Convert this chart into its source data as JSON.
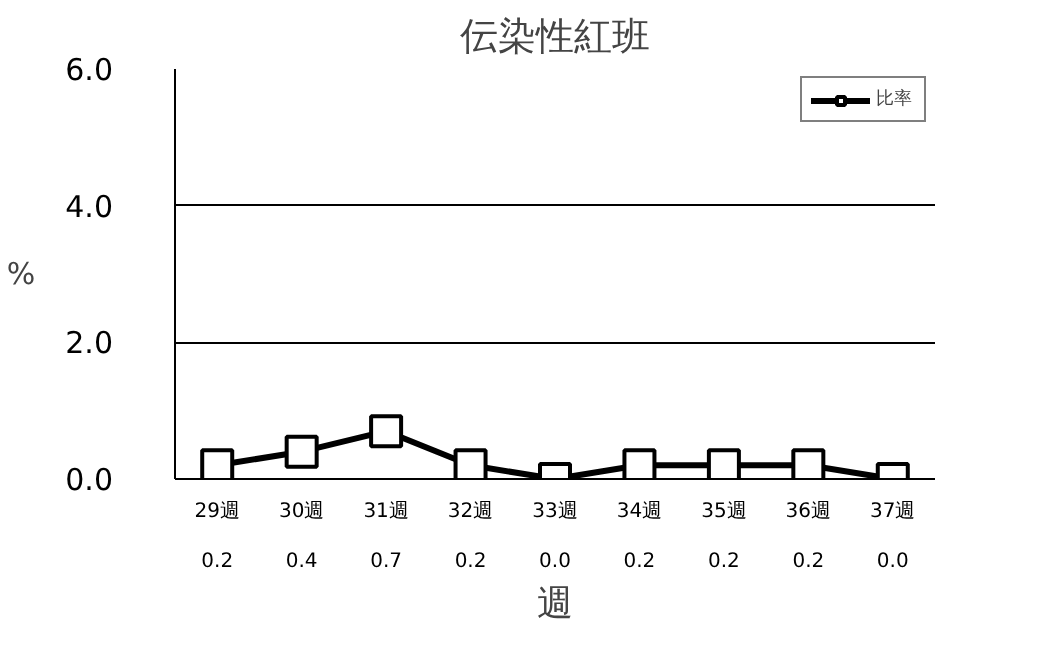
{
  "chart_data": {
    "type": "line",
    "title": "伝染性紅班",
    "xlabel": "週",
    "ylabel": "%",
    "categories": [
      "29週",
      "30週",
      "31週",
      "32週",
      "33週",
      "34週",
      "35週",
      "36週",
      "37週"
    ],
    "series": [
      {
        "name": "比率",
        "color": "#000000",
        "values": [
          0.2,
          0.4,
          0.7,
          0.2,
          0.0,
          0.2,
          0.2,
          0.2,
          0.0
        ],
        "value_labels": [
          "0.2",
          "0.4",
          "0.7",
          "0.2",
          "0.0",
          "0.2",
          "0.2",
          "0.2",
          "0.0"
        ]
      }
    ],
    "ylim": [
      0,
      6
    ],
    "yticks": [
      {
        "value": 0,
        "label": "0.0"
      },
      {
        "value": 2,
        "label": "2.0"
      },
      {
        "value": 4,
        "label": "4.0"
      },
      {
        "value": 6,
        "label": "6.0"
      }
    ],
    "grid": "y",
    "legend": "top right",
    "marker": "square",
    "line_style": "solid"
  }
}
